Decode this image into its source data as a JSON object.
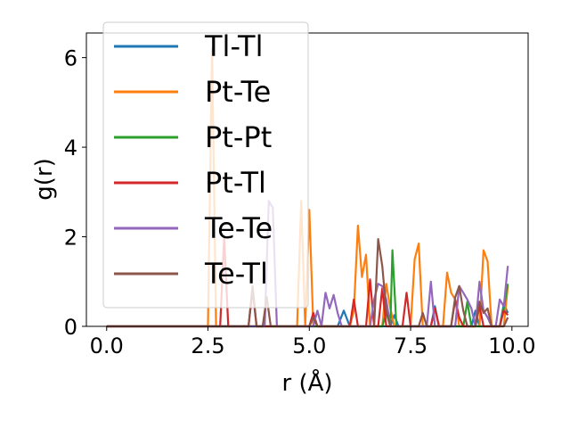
{
  "chart_data": {
    "type": "line",
    "title": "",
    "xlabel": "r (Å)",
    "ylabel": "g(r)",
    "xlim": [
      -0.5,
      10.4
    ],
    "ylim": [
      0,
      6.55
    ],
    "x_ticks": [
      0.0,
      2.5,
      5.0,
      7.5,
      10.0
    ],
    "x_tick_labels": [
      "0.0",
      "2.5",
      "5.0",
      "7.5",
      "10.0"
    ],
    "y_ticks": [
      0,
      2,
      4,
      6
    ],
    "y_tick_labels": [
      "0",
      "2",
      "4",
      "6"
    ],
    "grid": false,
    "legend_position": "top-left",
    "series": [
      {
        "name": "Tl-Tl",
        "color": "#1f77b4",
        "points": [
          [
            0.0,
            0
          ],
          [
            5.7,
            0
          ],
          [
            5.85,
            0.35
          ],
          [
            6.0,
            0
          ],
          [
            7.0,
            0
          ],
          [
            7.1,
            0.25
          ],
          [
            7.2,
            0
          ],
          [
            8.0,
            0
          ],
          [
            8.1,
            0.45
          ],
          [
            8.2,
            0
          ],
          [
            9.0,
            0
          ],
          [
            9.1,
            0.35
          ],
          [
            9.2,
            0
          ],
          [
            9.7,
            0
          ],
          [
            9.8,
            0.5
          ],
          [
            9.9,
            0.3
          ]
        ]
      },
      {
        "name": "Pt-Te",
        "color": "#ff7f0e",
        "points": [
          [
            0.0,
            0
          ],
          [
            2.5,
            0
          ],
          [
            2.6,
            6.2
          ],
          [
            2.7,
            0
          ],
          [
            4.7,
            0
          ],
          [
            4.8,
            2.8
          ],
          [
            4.9,
            0
          ],
          [
            5.0,
            2.6
          ],
          [
            5.1,
            0
          ],
          [
            6.0,
            0
          ],
          [
            6.1,
            0.35
          ],
          [
            6.2,
            2.25
          ],
          [
            6.3,
            1.1
          ],
          [
            6.4,
            1.6
          ],
          [
            6.5,
            0
          ],
          [
            6.8,
            0
          ],
          [
            6.9,
            0.95
          ],
          [
            7.0,
            0.4
          ],
          [
            7.1,
            0
          ],
          [
            7.5,
            0
          ],
          [
            7.6,
            1.5
          ],
          [
            7.7,
            1.85
          ],
          [
            7.8,
            0
          ],
          [
            8.3,
            0
          ],
          [
            8.4,
            1.2
          ],
          [
            8.5,
            0.75
          ],
          [
            8.6,
            0.6
          ],
          [
            8.7,
            0
          ],
          [
            9.2,
            0
          ],
          [
            9.3,
            1.7
          ],
          [
            9.4,
            1.45
          ],
          [
            9.5,
            0
          ],
          [
            9.8,
            0
          ],
          [
            9.9,
            0.9
          ]
        ]
      },
      {
        "name": "Pt-Pt",
        "color": "#2ca02c",
        "points": [
          [
            0.0,
            0
          ],
          [
            6.8,
            0
          ],
          [
            6.9,
            0.3
          ],
          [
            7.0,
            0
          ],
          [
            7.05,
            1.7
          ],
          [
            7.15,
            0
          ],
          [
            8.8,
            0
          ],
          [
            8.9,
            0.55
          ],
          [
            9.0,
            0
          ],
          [
            9.7,
            0
          ],
          [
            9.8,
            0.4
          ],
          [
            9.9,
            0.95
          ]
        ]
      },
      {
        "name": "Pt-Tl",
        "color": "#d62728",
        "points": [
          [
            0.0,
            0
          ],
          [
            2.8,
            0
          ],
          [
            2.9,
            2.0
          ],
          [
            3.0,
            0
          ],
          [
            3.5,
            0
          ],
          [
            3.6,
            0.8
          ],
          [
            3.7,
            0
          ],
          [
            5.0,
            0
          ],
          [
            5.1,
            0.3
          ],
          [
            5.2,
            0
          ],
          [
            6.0,
            0
          ],
          [
            6.1,
            0.6
          ],
          [
            6.2,
            0
          ],
          [
            6.4,
            0
          ],
          [
            6.5,
            1.05
          ],
          [
            6.6,
            0
          ],
          [
            6.7,
            0
          ],
          [
            6.8,
            0.85
          ],
          [
            6.9,
            0
          ],
          [
            7.3,
            0
          ],
          [
            7.4,
            0.75
          ],
          [
            7.5,
            0
          ],
          [
            8.0,
            0
          ],
          [
            8.1,
            0.4
          ],
          [
            8.2,
            0
          ],
          [
            8.5,
            0
          ],
          [
            8.6,
            0.6
          ],
          [
            8.7,
            0.2
          ],
          [
            8.8,
            0
          ],
          [
            9.1,
            0
          ],
          [
            9.2,
            0.45
          ],
          [
            9.3,
            0
          ],
          [
            9.7,
            0
          ],
          [
            9.8,
            0.35
          ],
          [
            9.9,
            0.25
          ]
        ]
      },
      {
        "name": "Te-Te",
        "color": "#9467bd",
        "points": [
          [
            0.0,
            0
          ],
          [
            3.9,
            0
          ],
          [
            4.0,
            2.8
          ],
          [
            4.1,
            2.65
          ],
          [
            4.2,
            0
          ],
          [
            5.1,
            0
          ],
          [
            5.2,
            0.35
          ],
          [
            5.3,
            0
          ],
          [
            5.4,
            0.75
          ],
          [
            5.5,
            0.4
          ],
          [
            5.6,
            0.7
          ],
          [
            5.7,
            0.3
          ],
          [
            5.8,
            0
          ],
          [
            6.5,
            0
          ],
          [
            6.6,
            0.6
          ],
          [
            6.7,
            0.95
          ],
          [
            6.8,
            0.9
          ],
          [
            6.9,
            0.6
          ],
          [
            7.0,
            0
          ],
          [
            7.9,
            0
          ],
          [
            8.0,
            1.0
          ],
          [
            8.1,
            0
          ],
          [
            8.6,
            0
          ],
          [
            8.7,
            0.9
          ],
          [
            8.8,
            0.75
          ],
          [
            8.9,
            0.6
          ],
          [
            9.0,
            0.4
          ],
          [
            9.1,
            0
          ],
          [
            9.2,
            1.0
          ],
          [
            9.3,
            0.35
          ],
          [
            9.4,
            0.2
          ],
          [
            9.5,
            0
          ],
          [
            9.6,
            0
          ],
          [
            9.7,
            0.6
          ],
          [
            9.8,
            0.45
          ],
          [
            9.9,
            1.35
          ]
        ]
      },
      {
        "name": "Te-Tl",
        "color": "#8c564b",
        "points": [
          [
            0.0,
            0
          ],
          [
            3.5,
            0
          ],
          [
            3.6,
            0.9
          ],
          [
            3.7,
            0
          ],
          [
            3.85,
            0
          ],
          [
            3.95,
            0.65
          ],
          [
            4.05,
            0
          ],
          [
            5.0,
            0
          ],
          [
            5.1,
            0.2
          ],
          [
            5.2,
            0
          ],
          [
            6.6,
            0
          ],
          [
            6.7,
            1.95
          ],
          [
            6.8,
            1.35
          ],
          [
            6.9,
            0.35
          ],
          [
            7.0,
            0
          ],
          [
            7.7,
            0
          ],
          [
            7.8,
            0.3
          ],
          [
            7.9,
            0
          ],
          [
            8.5,
            0
          ],
          [
            8.6,
            0.65
          ],
          [
            8.7,
            0.9
          ],
          [
            8.8,
            0.35
          ],
          [
            8.9,
            0
          ],
          [
            9.1,
            0
          ],
          [
            9.2,
            0.55
          ],
          [
            9.3,
            0.3
          ],
          [
            9.4,
            0.4
          ],
          [
            9.5,
            0
          ],
          [
            9.8,
            0
          ],
          [
            9.9,
            0.2
          ]
        ]
      }
    ]
  }
}
